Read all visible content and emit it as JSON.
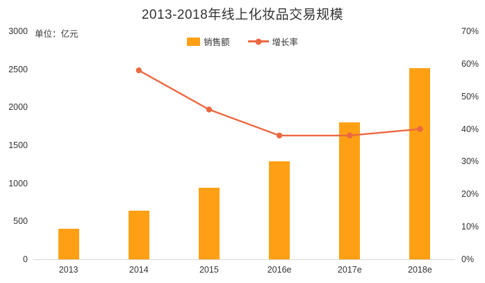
{
  "chart": {
    "title": "2013-2018年线上化妆品交易规模",
    "unit_label": "单位：亿元",
    "legend_sales": "销售额",
    "legend_growth": "增长率",
    "colors": {
      "bar": "#FFA014",
      "line": "#EB6841",
      "axis": "#D9D9D9",
      "text": "#333333"
    },
    "left_axis": {
      "ticks": [
        "3000",
        "2500",
        "2000",
        "1500",
        "1000",
        "500",
        "0"
      ]
    },
    "right_axis": {
      "ticks": [
        "70%",
        "60%",
        "50%",
        "40%",
        "30%",
        "20%",
        "10%",
        "0%"
      ]
    }
  },
  "chart_data": {
    "type": "bar",
    "title": "2013-2018年线上化妆品交易规模",
    "categories": [
      "2013",
      "2014",
      "2015",
      "2016e",
      "2017e",
      "2018e"
    ],
    "series": [
      {
        "name": "销售额",
        "type": "bar",
        "unit": "亿元",
        "axis": "left",
        "color": "#FFA014",
        "values": [
          400,
          640,
          940,
          1290,
          1800,
          2515
        ]
      },
      {
        "name": "增长率",
        "type": "line",
        "unit": "%",
        "axis": "right",
        "color": "#EB6841",
        "values": [
          null,
          58,
          46,
          38,
          38,
          40
        ]
      }
    ],
    "left_ylim": [
      0,
      3000
    ],
    "right_ylim": [
      0,
      70
    ],
    "grid": false,
    "legend_position": "top-center"
  }
}
